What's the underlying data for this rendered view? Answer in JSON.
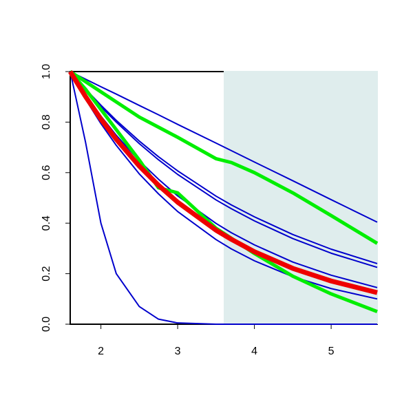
{
  "chart_data": {
    "type": "line",
    "x": [
      1.6,
      1.8,
      2.0,
      2.2,
      2.5,
      2.75,
      3.0,
      3.5,
      3.7,
      4.0,
      4.5,
      5.0,
      5.6
    ],
    "xlim": [
      1.6,
      5.6
    ],
    "xticks": [
      2,
      3,
      4,
      5
    ],
    "ylim": [
      0,
      1
    ],
    "yticks": [
      {
        "value": 0,
        "label": "0.0"
      },
      {
        "value": 0.2,
        "label": "0.2"
      },
      {
        "value": 0.4,
        "label": "0.4"
      },
      {
        "value": 0.6,
        "label": "0.6"
      },
      {
        "value": 0.8,
        "label": "0.8"
      },
      {
        "value": 1,
        "label": "1.0"
      }
    ],
    "shade_from": 3.6,
    "shade_color": "#dfeded",
    "series": [
      {
        "color": "#0000cc",
        "line_width": 2,
        "values": [
          1,
          0.72,
          0.4,
          0.2,
          0.07,
          0.02,
          0.005,
          0,
          0,
          0,
          0,
          0,
          0
        ]
      },
      {
        "color": "#0000cc",
        "line_width": 2,
        "values": [
          1,
          0.97,
          0.94,
          0.911,
          0.866,
          0.829,
          0.791,
          0.717,
          0.687,
          0.642,
          0.568,
          0.493,
          0.404
        ]
      },
      {
        "color": "#0000cc",
        "line_width": 2,
        "values": [
          1,
          0.931,
          0.867,
          0.807,
          0.725,
          0.663,
          0.607,
          0.507,
          0.472,
          0.425,
          0.355,
          0.297,
          0.24
        ]
      },
      {
        "color": "#0000cc",
        "line_width": 2,
        "values": [
          1,
          0.928,
          0.861,
          0.8,
          0.715,
          0.651,
          0.593,
          0.492,
          0.457,
          0.409,
          0.339,
          0.281,
          0.225
        ]
      },
      {
        "color": "#0000cc",
        "line_width": 2,
        "values": [
          1,
          0.908,
          0.824,
          0.748,
          0.647,
          0.574,
          0.508,
          0.399,
          0.362,
          0.314,
          0.246,
          0.194,
          0.145
        ]
      },
      {
        "color": "#0000cc",
        "line_width": 2,
        "values": [
          1,
          0.891,
          0.794,
          0.708,
          0.595,
          0.516,
          0.446,
          0.335,
          0.298,
          0.251,
          0.188,
          0.141,
          0.1
        ]
      },
      {
        "color": "#00ee00",
        "line_width": 5,
        "values": [
          1,
          0.96,
          0.92,
          0.88,
          0.82,
          0.78,
          0.74,
          0.655,
          0.64,
          0.6,
          0.52,
          0.43,
          0.32
        ]
      },
      {
        "color": "#00ee00",
        "line_width": 5,
        "values": [
          1,
          0.93,
          0.85,
          0.77,
          0.65,
          0.54,
          0.52,
          0.38,
          0.34,
          0.28,
          0.19,
          0.12,
          0.05
        ]
      },
      {
        "color": "#ee0000",
        "line_width": 7,
        "values": [
          1,
          0.901,
          0.812,
          0.732,
          0.626,
          0.55,
          0.483,
          0.372,
          0.336,
          0.287,
          0.221,
          0.171,
          0.125
        ]
      }
    ]
  }
}
